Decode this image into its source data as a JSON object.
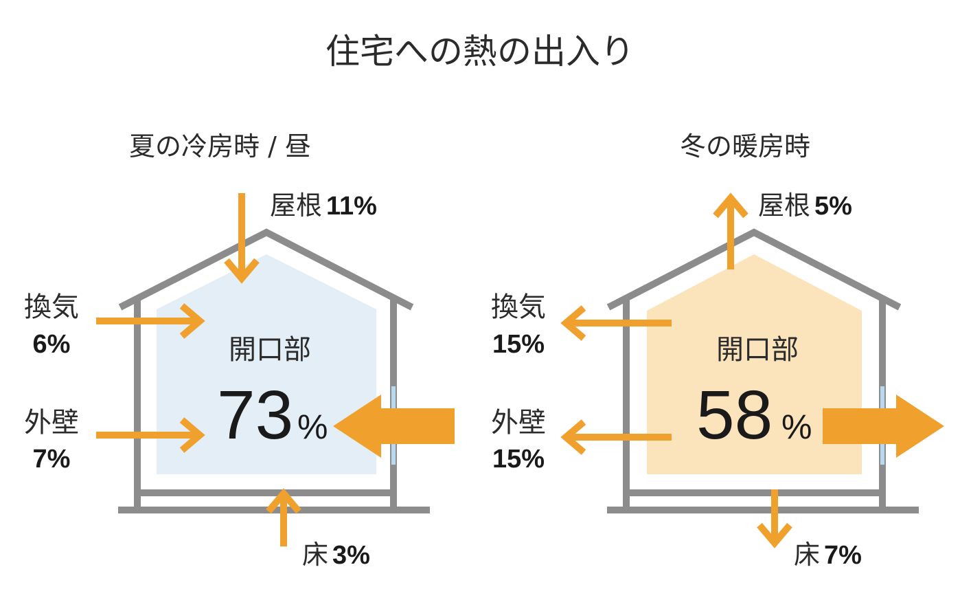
{
  "title": "住宅への熱の出入り",
  "colors": {
    "arrow": "#f0a12d",
    "house_outline": "#8c8c8c",
    "summer_fill": "#e3eef6",
    "winter_fill": "#fbe3bc",
    "window": "#b8d8ee",
    "text": "#2b2b2b"
  },
  "summer": {
    "heading": "夏の冷房時 / 昼",
    "roof": {
      "label": "屋根",
      "value": "11%",
      "direction": "in"
    },
    "ventilation": {
      "label": "換気",
      "value": "6%",
      "direction": "in"
    },
    "wall": {
      "label": "外壁",
      "value": "7%",
      "direction": "in"
    },
    "floor": {
      "label": "床",
      "value": "3%",
      "direction": "in"
    },
    "opening": {
      "label": "開口部",
      "value": "73",
      "unit": "%",
      "direction": "in"
    }
  },
  "winter": {
    "heading": "冬の暖房時",
    "roof": {
      "label": "屋根",
      "value": "5%",
      "direction": "out"
    },
    "ventilation": {
      "label": "換気",
      "value": "15%",
      "direction": "out"
    },
    "wall": {
      "label": "外壁",
      "value": "15%",
      "direction": "out"
    },
    "floor": {
      "label": "床",
      "value": "7%",
      "direction": "out"
    },
    "opening": {
      "label": "開口部",
      "value": "58",
      "unit": "%",
      "direction": "out"
    }
  }
}
